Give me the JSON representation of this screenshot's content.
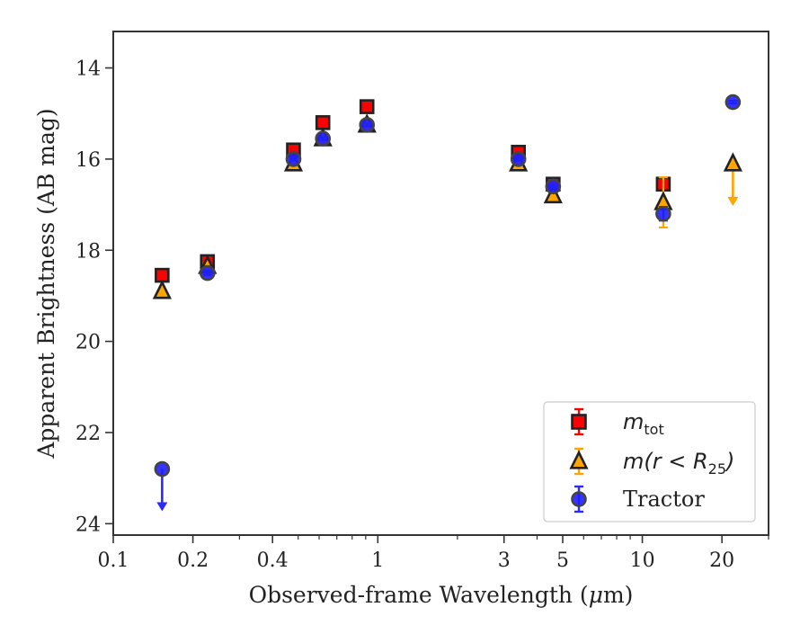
{
  "chart_data": {
    "type": "scatter",
    "title": "",
    "xlabel_prefix": "Observed-frame Wavelength (",
    "xlabel_mu": "μ",
    "xlabel_suffix": "m)",
    "ylabel": "Apparent Brightness (AB mag)",
    "xscale": "log",
    "xlim": [
      0.1,
      30
    ],
    "ylim": [
      24.25,
      13.2
    ],
    "y_inverted": true,
    "x_ticks": [
      {
        "value": 0.1,
        "label": "0.1"
      },
      {
        "value": 0.2,
        "label": "0.2"
      },
      {
        "value": 0.4,
        "label": "0.4"
      },
      {
        "value": 1,
        "label": "1"
      },
      {
        "value": 3,
        "label": "3"
      },
      {
        "value": 5,
        "label": "5"
      },
      {
        "value": 10,
        "label": "10"
      },
      {
        "value": 20,
        "label": "20"
      }
    ],
    "x_minor_ticks": [
      0.3,
      0.5,
      0.6,
      0.7,
      0.8,
      0.9,
      2,
      4,
      6,
      7,
      8,
      9,
      30
    ],
    "y_ticks": [
      {
        "value": 14,
        "label": "14"
      },
      {
        "value": 16,
        "label": "16"
      },
      {
        "value": 18,
        "label": "18"
      },
      {
        "value": 20,
        "label": "20"
      },
      {
        "value": 22,
        "label": "22"
      },
      {
        "value": 24,
        "label": "24"
      }
    ],
    "grid": false,
    "legend_position": "lower-right",
    "series": [
      {
        "name": "m_tot",
        "legend_main": "m",
        "legend_sub": "tot",
        "marker": "square",
        "color": "#ff0000",
        "edge_color": "#222222",
        "error_color": "#ff0000",
        "points": [
          {
            "x": 0.153,
            "y": 18.55,
            "err": 0.0
          },
          {
            "x": 0.227,
            "y": 18.25,
            "err": 0.1
          },
          {
            "x": 0.48,
            "y": 15.8,
            "err": 0.05
          },
          {
            "x": 0.62,
            "y": 15.2,
            "err": 0.03
          },
          {
            "x": 0.91,
            "y": 14.85,
            "err": 0.03
          },
          {
            "x": 3.4,
            "y": 15.85,
            "err": 0.05
          },
          {
            "x": 4.6,
            "y": 16.55,
            "err": 0.05
          },
          {
            "x": 12.0,
            "y": 16.55,
            "err": 0.1
          }
        ]
      },
      {
        "name": "m(r<R25)",
        "legend_math": "m(r < R",
        "legend_sub": "25",
        "legend_close": ")",
        "marker": "triangle",
        "color": "#ffa500",
        "edge_color": "#222222",
        "error_color": "#ffa500",
        "points": [
          {
            "x": 0.153,
            "y": 18.9,
            "err": 0.0
          },
          {
            "x": 0.227,
            "y": 18.35,
            "err": 0.05
          },
          {
            "x": 0.48,
            "y": 16.1,
            "err": 0.03
          },
          {
            "x": 0.62,
            "y": 15.55,
            "err": 0.03
          },
          {
            "x": 0.91,
            "y": 15.25,
            "err": 0.03
          },
          {
            "x": 3.4,
            "y": 16.1,
            "err": 0.03
          },
          {
            "x": 4.6,
            "y": 16.8,
            "err": 0.03
          },
          {
            "x": 12.0,
            "y": 16.95,
            "err": 0.55
          },
          {
            "x": 22.0,
            "y": 16.1,
            "err": 0.0,
            "upper_limit": true
          }
        ]
      },
      {
        "name": "Tractor",
        "legend_label": "Tractor",
        "marker": "circle",
        "color": "#1f1fff",
        "edge_color": "#444444",
        "error_color": "#2a2aff",
        "points": [
          {
            "x": 0.153,
            "y": 22.8,
            "err": 0.0,
            "upper_limit": true
          },
          {
            "x": 0.227,
            "y": 18.5,
            "err": 0.05
          },
          {
            "x": 0.48,
            "y": 16.0,
            "err": 0.03
          },
          {
            "x": 0.62,
            "y": 15.55,
            "err": 0.03
          },
          {
            "x": 0.91,
            "y": 15.25,
            "err": 0.03
          },
          {
            "x": 3.4,
            "y": 16.0,
            "err": 0.03
          },
          {
            "x": 4.6,
            "y": 16.6,
            "err": 0.03
          },
          {
            "x": 12.0,
            "y": 17.2,
            "err": 0.15
          },
          {
            "x": 22.0,
            "y": 14.75,
            "err": 0.03
          }
        ]
      }
    ]
  }
}
